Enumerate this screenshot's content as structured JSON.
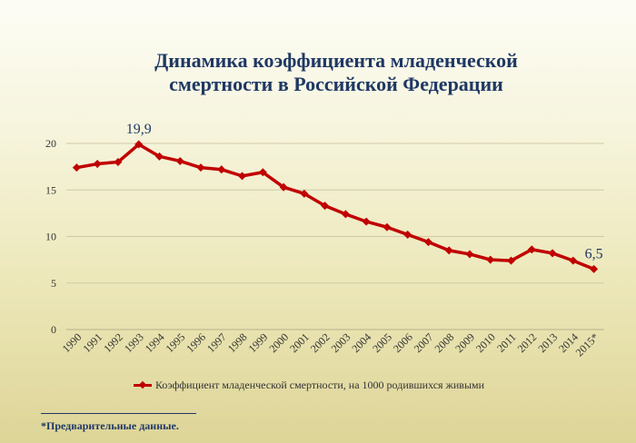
{
  "chart_data": {
    "type": "line",
    "title_lines": [
      "Динамика коэффициента младенческой",
      "смертности в Российской Федерации"
    ],
    "categories": [
      "1990",
      "1991",
      "1992",
      "1993",
      "1994",
      "1995",
      "1996",
      "1997",
      "1998",
      "1999",
      "2000",
      "2001",
      "2002",
      "2003",
      "2004",
      "2005",
      "2006",
      "2007",
      "2008",
      "2009",
      "2010",
      "2011",
      "2012",
      "2013",
      "2014",
      "2015*"
    ],
    "series": [
      {
        "name": "Коэффициент младенческой смертности, на 1000 родившихся живыми",
        "color": "#c00000",
        "values": [
          17.4,
          17.8,
          18.0,
          19.9,
          18.6,
          18.1,
          17.4,
          17.2,
          16.5,
          16.9,
          15.3,
          14.6,
          13.3,
          12.4,
          11.6,
          11.0,
          10.2,
          9.4,
          8.5,
          8.1,
          7.5,
          7.4,
          8.6,
          8.2,
          7.4,
          6.5
        ]
      }
    ],
    "annotations": [
      {
        "category": "1993",
        "text": "19,9"
      },
      {
        "category": "2015*",
        "text": "6,5"
      }
    ],
    "yticks": [
      "0",
      "5",
      "10",
      "15",
      "20"
    ],
    "ylim": [
      0,
      20
    ],
    "grid": true,
    "legend_position": "bottom",
    "xlabel": "",
    "ylabel": ""
  },
  "footnote": "*Предварительные данные."
}
